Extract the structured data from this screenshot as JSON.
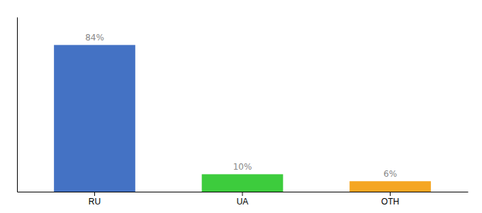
{
  "chart_data": {
    "type": "bar",
    "categories": [
      "RU",
      "UA",
      "OTH"
    ],
    "values": [
      84,
      10,
      6
    ],
    "value_labels": [
      "84%",
      "10%",
      "6%"
    ],
    "colors": [
      "#4472c4",
      "#3dcc3d",
      "#f5a623"
    ],
    "ylim": [
      0,
      100
    ],
    "yticks": [],
    "data_labels": true,
    "tick_labels": "x"
  }
}
